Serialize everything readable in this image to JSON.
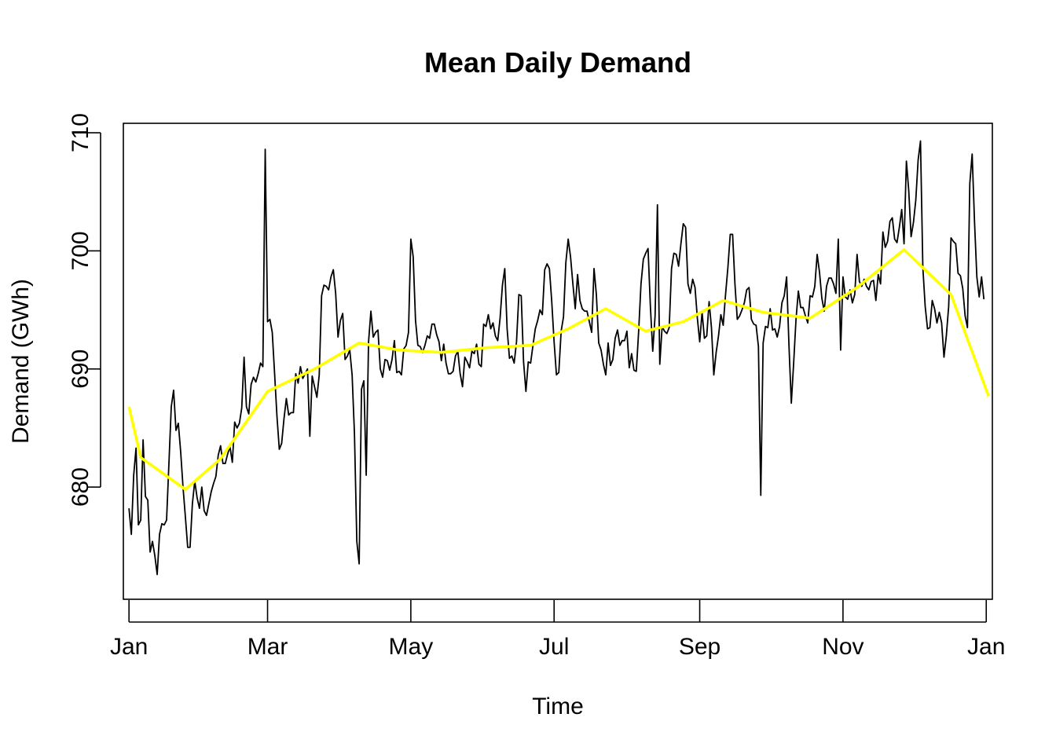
{
  "chart_data": {
    "type": "line",
    "title": "Mean Daily Demand",
    "xlabel": "Time",
    "ylabel": "Demand (GWh)",
    "ylim": [
      670.5,
      710.8
    ],
    "yticks": [
      680,
      690,
      700,
      710
    ],
    "xlim_days": [
      -2.4,
      367.6
    ],
    "xticks": [
      {
        "label": "Jan",
        "day": 0
      },
      {
        "label": "Mar",
        "day": 59
      },
      {
        "label": "May",
        "day": 120
      },
      {
        "label": "Jul",
        "day": 181
      },
      {
        "label": "Sep",
        "day": 243
      },
      {
        "label": "Nov",
        "day": 304
      },
      {
        "label": "Jan",
        "day": 365
      }
    ],
    "grid": false,
    "series": [
      {
        "kind": "daily",
        "color": "#000000",
        "values": [
          678.2,
          676.0,
          681.0,
          683.3,
          676.8,
          677.2,
          684.0,
          679.2,
          678.9,
          674.5,
          675.4,
          674.2,
          672.6,
          676.0,
          676.9,
          676.8,
          677.2,
          682.0,
          686.8,
          688.2,
          684.8,
          685.4,
          683.0,
          680.0,
          677.5,
          674.9,
          674.9,
          678.6,
          680.5,
          679.1,
          678.2,
          680.0,
          678.0,
          677.6,
          678.6,
          679.6,
          680.3,
          680.9,
          682.7,
          683.5,
          682.0,
          682.0,
          682.8,
          683.4,
          682.1,
          685.5,
          685.0,
          685.4,
          686.7,
          691.0,
          686.8,
          686.2,
          688.7,
          689.3,
          688.9,
          689.6,
          690.5,
          690.2,
          708.6,
          694.0,
          694.2,
          693.1,
          689.6,
          686.0,
          683.2,
          683.7,
          685.8,
          687.5,
          686.1,
          686.3,
          686.3,
          689.6,
          688.8,
          690.2,
          689.2,
          689.6,
          690.0,
          684.3,
          689.4,
          688.5,
          687.6,
          689.5,
          696.2,
          697.1,
          697.0,
          696.7,
          697.8,
          698.4,
          696.4,
          692.7,
          694.1,
          694.7,
          690.8,
          691.1,
          691.6,
          689.5,
          684.5,
          675.4,
          673.5,
          688.3,
          689.0,
          681.0,
          692.3,
          694.9,
          692.7,
          693.1,
          693.3,
          690.0,
          689.3,
          690.8,
          690.7,
          689.9,
          690.8,
          692.4,
          689.7,
          689.8,
          689.5,
          691.7,
          692.0,
          693.1,
          701.0,
          699.5,
          694.1,
          692.0,
          691.9,
          691.4,
          692.0,
          692.8,
          692.6,
          693.8,
          693.8,
          692.9,
          692.3,
          690.7,
          692.1,
          690.5,
          689.6,
          689.6,
          689.8,
          691.1,
          691.5,
          689.6,
          688.5,
          691.0,
          690.6,
          690.1,
          691.5,
          691.3,
          692.1,
          690.4,
          690.2,
          693.8,
          693.6,
          694.6,
          693.4,
          693.9,
          692.8,
          692.4,
          694.3,
          697.1,
          698.5,
          693.4,
          690.9,
          691.1,
          690.5,
          692.3,
          696.3,
          696.2,
          690.6,
          688.1,
          690.6,
          690.5,
          692.0,
          693.4,
          694.1,
          695.0,
          694.6,
          698.4,
          698.9,
          698.5,
          695.7,
          692.3,
          689.5,
          689.7,
          693.2,
          694.4,
          699.0,
          701.0,
          699.5,
          697.2,
          695.1,
          698.0,
          695.8,
          695.1,
          694.9,
          694.9,
          694.0,
          693.1,
          698.5,
          696.3,
          692.2,
          691.6,
          690.4,
          689.5,
          692.2,
          690.3,
          690.8,
          692.6,
          693.3,
          692.0,
          692.4,
          692.4,
          693.2,
          690.1,
          691.3,
          689.9,
          689.8,
          693.2,
          697.2,
          699.3,
          699.8,
          700.2,
          695.3,
          691.5,
          694.5,
          703.9,
          690.4,
          693.6,
          693.2,
          693.0,
          693.5,
          698.5,
          699.8,
          699.7,
          698.7,
          700.6,
          702.3,
          702.0,
          697.2,
          696.4,
          697.6,
          696.9,
          694.3,
          692.3,
          694.8,
          692.6,
          692.8,
          695.7,
          693.5,
          689.5,
          691.4,
          692.8,
          694.6,
          693.7,
          696.3,
          698.6,
          701.4,
          701.4,
          697.2,
          694.2,
          694.5,
          695.0,
          695.6,
          696.7,
          696.9,
          694.2,
          693.8,
          693.7,
          691.9,
          679.3,
          692.2,
          693.6,
          693.5,
          695.1,
          693.3,
          693.4,
          692.7,
          693.6,
          695.6,
          696.2,
          697.8,
          692.0,
          687.1,
          690.5,
          694.2,
          696.6,
          695.2,
          695.2,
          694.5,
          693.9,
          696.2,
          696.1,
          697.0,
          699.7,
          698.2,
          696.0,
          694.9,
          697.0,
          697.7,
          697.7,
          697.2,
          696.4,
          701.0,
          691.6,
          697.8,
          696.1,
          695.9,
          696.7,
          695.6,
          696.3,
          699.7,
          697.4,
          697.0,
          697.6,
          697.0,
          696.7,
          697.4,
          697.5,
          695.8,
          698.0,
          697.2,
          701.6,
          700.3,
          700.8,
          702.5,
          702.8,
          701.0,
          700.7,
          702.0,
          703.5,
          700.6,
          707.6,
          705.1,
          701.2,
          702.4,
          704.3,
          707.7,
          709.3,
          698.6,
          695.3,
          693.4,
          693.5,
          695.8,
          695.1,
          693.9,
          694.8,
          693.9,
          691.0,
          692.8,
          695.3,
          701.1,
          700.8,
          700.6,
          698.1,
          697.9,
          696.8,
          694.5,
          693.5,
          705.7,
          708.2,
          702.5,
          697.8,
          696.1,
          697.8,
          695.9
        ]
      },
      {
        "kind": "trend",
        "color": "#ffff00",
        "x_days": [
          0,
          5,
          24,
          39,
          59,
          79,
          98,
          115,
          133,
          152,
          171,
          187,
          203,
          220,
          236,
          253,
          270,
          290,
          310,
          330,
          350,
          366
        ],
        "values": [
          686.8,
          682.5,
          679.8,
          682.4,
          688.1,
          690.0,
          692.2,
          691.6,
          691.4,
          691.8,
          692.0,
          693.4,
          695.1,
          693.2,
          694.0,
          695.8,
          694.8,
          694.3,
          696.9,
          700.1,
          696.3,
          687.7
        ]
      }
    ]
  }
}
